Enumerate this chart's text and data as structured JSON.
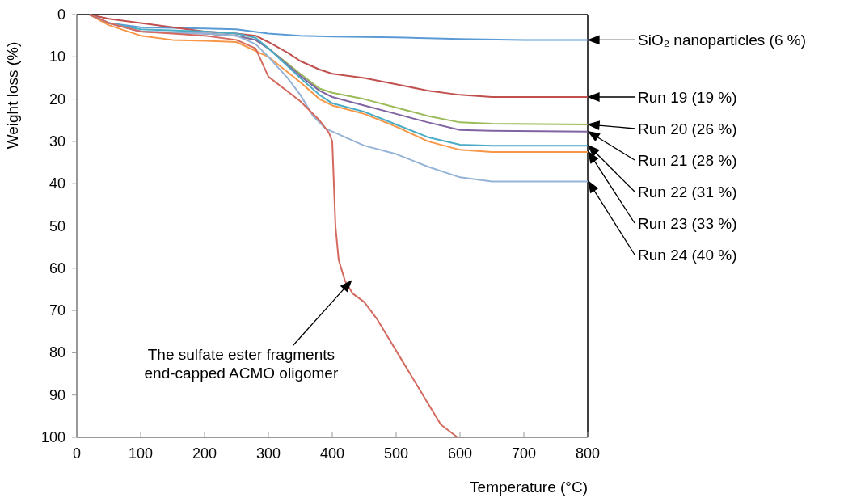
{
  "chart_data": {
    "type": "line",
    "xlabel": "Temperature (°C)",
    "ylabel": "Weight loss (%)",
    "xlim": [
      0,
      800
    ],
    "ylim": [
      100,
      0
    ],
    "xticks": [
      0,
      100,
      200,
      300,
      400,
      500,
      600,
      700,
      800
    ],
    "yticks": [
      0,
      10,
      20,
      30,
      40,
      50,
      60,
      70,
      80,
      90,
      100
    ],
    "grid": false,
    "marker": "none",
    "line_style": "solid",
    "series": [
      {
        "name": "SiO₂ nanoparticles (6 %)",
        "color": "#5b9bd5",
        "x": [
          20,
          50,
          100,
          200,
          250,
          300,
          350,
          400,
          500,
          600,
          700,
          800
        ],
        "values": [
          0,
          2,
          3,
          3.3,
          3.5,
          4.5,
          5,
          5.2,
          5.4,
          5.8,
          6,
          6
        ]
      },
      {
        "name": "Run 19 (19 %)",
        "color": "#c0504d",
        "x": [
          20,
          50,
          100,
          150,
          200,
          250,
          280,
          300,
          330,
          350,
          380,
          400,
          450,
          500,
          550,
          600,
          650,
          700,
          800
        ],
        "values": [
          0,
          1,
          2,
          3,
          4,
          4.5,
          5,
          6.5,
          9,
          11,
          13,
          14,
          15,
          16.5,
          18,
          19,
          19.5,
          19.5,
          19.5
        ]
      },
      {
        "name": "Run 20 (26 %)",
        "color": "#9bbb59",
        "x": [
          200,
          250,
          280,
          300,
          350,
          380,
          400,
          450,
          500,
          550,
          600,
          650,
          800
        ],
        "values": [
          4.5,
          5,
          6,
          8,
          14,
          17.5,
          18.5,
          20,
          22,
          24,
          25.5,
          25.8,
          26
        ]
      },
      {
        "name": "Run 21 (28 %)",
        "color": "#8064a2",
        "x": [
          20,
          50,
          100,
          200,
          250,
          280,
          300,
          350,
          380,
          400,
          450,
          500,
          550,
          600,
          650,
          800
        ],
        "values": [
          0,
          2,
          4,
          4.5,
          5,
          6,
          8,
          14.5,
          18,
          19.5,
          21.5,
          23.5,
          25.5,
          27.3,
          27.5,
          27.7
        ]
      },
      {
        "name": "Run 22 (31 %)",
        "color": "#4bacc6",
        "x": [
          20,
          50,
          100,
          200,
          250,
          280,
          300,
          350,
          380,
          400,
          450,
          500,
          550,
          600,
          650,
          800
        ],
        "values": [
          0,
          2,
          3.5,
          4,
          4.5,
          5.5,
          8,
          15,
          19,
          21,
          23,
          26,
          29,
          30.8,
          31,
          31
        ]
      },
      {
        "name": "Run 23 (33 %)",
        "color": "#f79646",
        "x": [
          20,
          50,
          100,
          150,
          200,
          250,
          300,
          350,
          380,
          400,
          450,
          500,
          550,
          600,
          650,
          800
        ],
        "values": [
          0,
          2.5,
          5,
          6,
          6.2,
          6.5,
          10,
          16,
          20,
          21.5,
          23.5,
          26.5,
          30,
          32,
          32.5,
          32.5
        ]
      },
      {
        "name": "Run 24 (40 %)",
        "color": "#95b3d7",
        "x": [
          20,
          50,
          100,
          200,
          250,
          280,
          300,
          330,
          350,
          370,
          390,
          420,
          450,
          500,
          550,
          600,
          650,
          800
        ],
        "values": [
          0,
          2,
          4,
          4.5,
          5,
          7,
          10,
          15,
          19,
          24,
          27,
          29,
          31,
          33,
          36,
          38.5,
          39.5,
          39.5
        ]
      },
      {
        "color": "#d46a5f",
        "x": [
          20,
          50,
          100,
          150,
          200,
          250,
          280,
          300,
          350,
          380,
          395,
          400,
          405,
          410,
          420,
          432,
          450,
          470,
          490,
          510,
          530,
          550,
          570,
          596
        ],
        "values": [
          0,
          2,
          4,
          4.5,
          5,
          6,
          8,
          14.7,
          20.5,
          25,
          28,
          30,
          50,
          58,
          63,
          66,
          68,
          72,
          77,
          82,
          87,
          92,
          97,
          100
        ]
      }
    ],
    "annotations": [
      "The sulfate ester fragments end-capped ACMO oligomer"
    ]
  }
}
